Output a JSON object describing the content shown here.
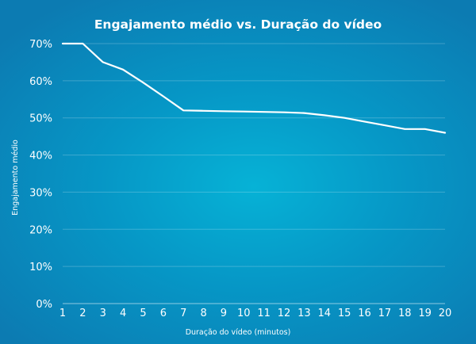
{
  "chart_data": {
    "type": "line",
    "title": "Engajamento médio vs. Duração do vídeo",
    "xlabel": "Duração do vídeo (minutos)",
    "ylabel": "Engajamento médio",
    "x": [
      1,
      2,
      3,
      4,
      5,
      6,
      7,
      8,
      9,
      10,
      11,
      12,
      13,
      14,
      15,
      16,
      17,
      18,
      19,
      20
    ],
    "x_tick_labels": [
      "1",
      "2",
      "3",
      "4",
      "5",
      "6",
      "7",
      "8",
      "9",
      "10",
      "11",
      "12",
      "13",
      "14",
      "15",
      "16",
      "17",
      "18",
      "19",
      "20"
    ],
    "series": [
      {
        "values": [
          70,
          70,
          65,
          63,
          59.5,
          55.8,
          52,
          51.9,
          51.8,
          51.7,
          51.6,
          51.5,
          51.3,
          50.7,
          50,
          49,
          48,
          47,
          47,
          46
        ]
      }
    ],
    "ylim": [
      0,
      70
    ],
    "y_ticks": [
      0,
      10,
      20,
      30,
      40,
      50,
      60,
      70
    ],
    "y_tick_labels": [
      "0%",
      "10%",
      "20%",
      "30%",
      "40%",
      "50%",
      "60%",
      "70%"
    ],
    "grid": true,
    "legend": "none",
    "colors": {
      "line": "#ffffff",
      "background_center": "#06b2d6",
      "background_edge": "#0c7bb2"
    }
  }
}
